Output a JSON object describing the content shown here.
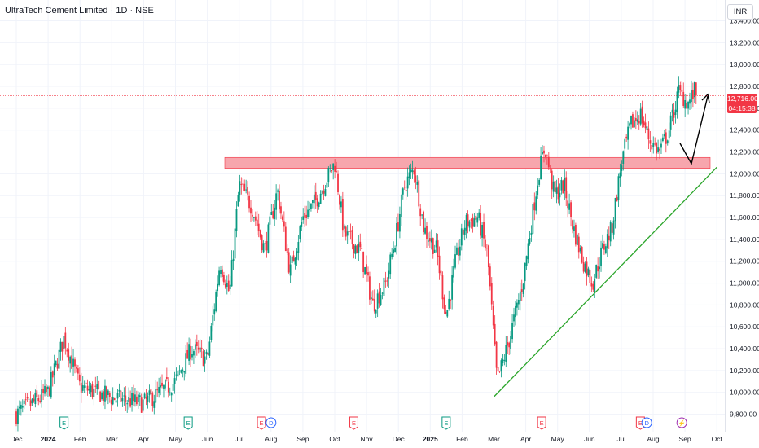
{
  "header": {
    "title": "UltraTech Cement Limited · 1D · NSE",
    "currency": "INR"
  },
  "colors": {
    "up": "#089981",
    "down": "#f23645",
    "resistance_zone": "#f7a6ad",
    "trendline": "#2aa52a",
    "arrow": "#000000",
    "grid": "#f0f3fa",
    "axis_text": "#131722"
  },
  "current_price": {
    "value": "12,716.00",
    "countdown": "04:15:38"
  },
  "chart_data": {
    "type": "candlestick",
    "symbol": "UltraTech Cement Limited",
    "interval": "1D",
    "exchange": "NSE",
    "y_ticks": [
      "13,400.00",
      "13,200.00",
      "13,000.00",
      "12,800.00",
      "12,600.00",
      "12,400.00",
      "12,200.00",
      "12,000.00",
      "11,800.00",
      "11,600.00",
      "11,400.00",
      "11,200.00",
      "11,000.00",
      "10,800.00",
      "10,600.00",
      "10,400.00",
      "10,200.00",
      "10,000.00",
      "9,800.00"
    ],
    "y_tick_values": [
      13400,
      13200,
      13000,
      12800,
      12600,
      12400,
      12200,
      12000,
      11800,
      11600,
      11400,
      11200,
      11000,
      10800,
      10600,
      10400,
      10200,
      10000,
      9800
    ],
    "ylim": [
      9700,
      13650
    ],
    "x_ticks": [
      "Dec",
      "2024",
      "Feb",
      "Mar",
      "Apr",
      "May",
      "Jun",
      "Jul",
      "Aug",
      "Sep",
      "Oct",
      "Nov",
      "Dec",
      "2025",
      "Feb",
      "Mar",
      "Apr",
      "May",
      "Jun",
      "Jul",
      "Aug",
      "Sep",
      "Oct"
    ],
    "x_tick_bold": [
      false,
      true,
      false,
      false,
      false,
      false,
      false,
      false,
      false,
      false,
      false,
      false,
      false,
      true,
      false,
      false,
      false,
      false,
      false,
      false,
      false,
      false,
      false
    ],
    "x_tick_months": [
      0,
      1,
      2,
      3,
      4,
      5,
      6,
      7,
      8,
      9,
      10,
      11,
      12,
      13,
      14,
      15,
      16,
      17,
      18,
      19,
      20,
      21,
      22
    ],
    "month_anchors": [
      [
        0,
        9800
      ],
      [
        1,
        10000
      ],
      [
        1.5,
        10500
      ],
      [
        2,
        10050
      ],
      [
        3,
        9950
      ],
      [
        4,
        9900
      ],
      [
        5,
        10100
      ],
      [
        5.5,
        10400
      ],
      [
        6,
        10300
      ],
      [
        6.4,
        11200
      ],
      [
        6.7,
        10900
      ],
      [
        7,
        11900
      ],
      [
        7.4,
        11700
      ],
      [
        7.8,
        11300
      ],
      [
        8.2,
        11850
      ],
      [
        8.6,
        11100
      ],
      [
        9,
        11600
      ],
      [
        9.4,
        11750
      ],
      [
        10,
        12100
      ],
      [
        10.3,
        11450
      ],
      [
        10.8,
        11300
      ],
      [
        11.2,
        10800
      ],
      [
        11.6,
        11000
      ],
      [
        11.9,
        11400
      ],
      [
        12.2,
        11900
      ],
      [
        12.5,
        12050
      ],
      [
        12.8,
        11500
      ],
      [
        13.2,
        11300
      ],
      [
        13.5,
        10700
      ],
      [
        13.8,
        11200
      ],
      [
        14.1,
        11550
      ],
      [
        14.5,
        11600
      ],
      [
        14.8,
        11250
      ],
      [
        15.1,
        10100
      ],
      [
        15.5,
        10500
      ],
      [
        15.9,
        11000
      ],
      [
        16.2,
        11600
      ],
      [
        16.4,
        12000
      ],
      [
        16.6,
        12250
      ],
      [
        16.9,
        11800
      ],
      [
        17.2,
        11900
      ],
      [
        17.5,
        11500
      ],
      [
        17.8,
        11200
      ],
      [
        18.1,
        11000
      ],
      [
        18.4,
        11300
      ],
      [
        18.7,
        11500
      ],
      [
        19.0,
        12100
      ],
      [
        19.3,
        12450
      ],
      [
        19.6,
        12550
      ],
      [
        19.9,
        12300
      ],
      [
        20.2,
        12200
      ],
      [
        20.5,
        12400
      ],
      [
        20.8,
        12750
      ],
      [
        21.1,
        12650
      ],
      [
        21.4,
        12800
      ]
    ],
    "candle_count": 430,
    "zones": [
      {
        "type": "resistance",
        "from": 12050,
        "to": 12150
      }
    ],
    "trendlines": [
      {
        "color": "green",
        "start": {
          "month": 15.0,
          "value": 9960
        },
        "end": {
          "month": 22.0,
          "value": 12060
        }
      }
    ],
    "event_markers": [
      {
        "month": 1.5,
        "label": "E",
        "color": "green"
      },
      {
        "month": 5.4,
        "label": "E",
        "color": "green"
      },
      {
        "month": 7.7,
        "label": "E",
        "color": "red"
      },
      {
        "month": 8.0,
        "label": "D",
        "color": "blue"
      },
      {
        "month": 10.6,
        "label": "E",
        "color": "red"
      },
      {
        "month": 13.5,
        "label": "E",
        "color": "green"
      },
      {
        "month": 16.5,
        "label": "E",
        "color": "red"
      },
      {
        "month": 19.6,
        "label": "E",
        "color": "red"
      },
      {
        "month": 19.8,
        "label": "D",
        "color": "blue"
      },
      {
        "month": 20.9,
        "label": "⚡",
        "color": "purple"
      }
    ],
    "grid": true,
    "last_price": 12716
  }
}
